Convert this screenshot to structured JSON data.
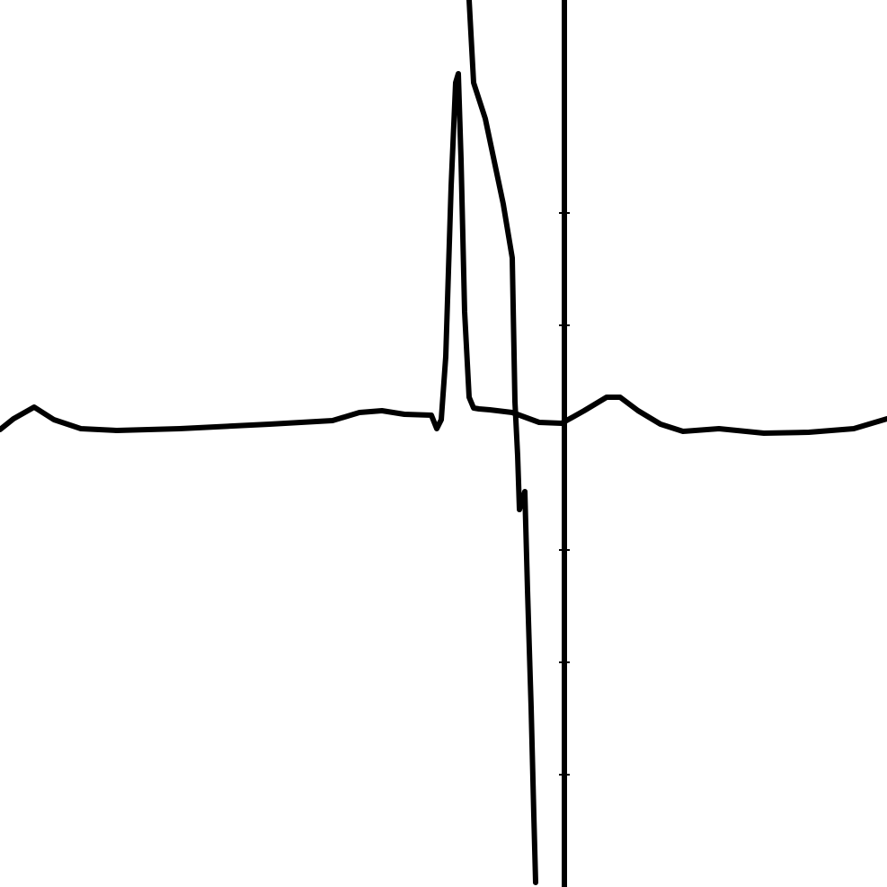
{
  "chart_data": {
    "type": "line",
    "title": "",
    "xlabel": "",
    "ylabel": "",
    "grid": false,
    "legend": "none",
    "line_color": "#000000",
    "background_color": "#ffffff",
    "xlim": [
      0,
      987
    ],
    "ylim": [
      0,
      987
    ],
    "series": [
      {
        "x": [
          0,
          15,
          38,
          60,
          90,
          130,
          200,
          300,
          370,
          400,
          425,
          450,
          480,
          486,
          491,
          496,
          502,
          507,
          510,
          513,
          517,
          522,
          527,
          533,
          545,
          570,
          600,
          625,
          650,
          675,
          690,
          710,
          735,
          760,
          800,
          850,
          900,
          950,
          987
        ],
        "y": [
          509,
          521,
          534,
          520,
          510,
          508,
          510,
          515,
          519,
          528,
          530,
          526,
          525,
          510,
          520,
          590,
          780,
          895,
          905,
          810,
          640,
          545,
          533,
          532,
          531,
          528,
          517,
          516,
          530,
          545,
          545,
          530,
          515,
          507,
          510,
          505,
          506,
          510,
          521
        ]
      },
      {
        "x": [
          522,
          527,
          540,
          560,
          570,
          573,
          576,
          578,
          584,
          587,
          591,
          594,
          596
        ],
        "y": [
          987,
          895,
          855,
          760,
          700,
          540,
          480,
          420,
          440,
          330,
          200,
          80,
          5
        ]
      }
    ],
    "marker": {
      "x": 628,
      "y_range": [
        0,
        987
      ],
      "ticks_y": [
        125,
        250,
        375,
        625,
        750
      ]
    }
  }
}
